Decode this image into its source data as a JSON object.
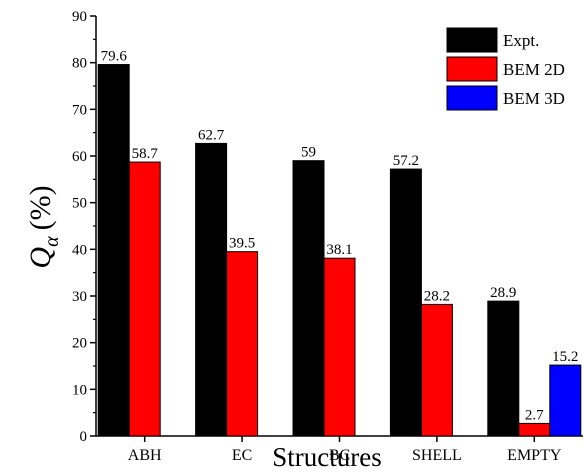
{
  "chart_data": {
    "type": "bar",
    "title": "",
    "xlabel": "Structures",
    "ylabel": {
      "symbol": "Q",
      "subscript": "α",
      "unit": "(%)"
    },
    "ylim": [
      0,
      90
    ],
    "yticks": [
      0,
      10,
      20,
      30,
      40,
      50,
      60,
      70,
      80,
      90
    ],
    "categories": [
      "ABH",
      "EC",
      "BC",
      "SHELL",
      "EMPTY"
    ],
    "series": [
      {
        "name": "Expt.",
        "color": "#000000",
        "values": [
          79.6,
          62.7,
          59,
          57.2,
          28.9
        ],
        "labels": [
          "79.6",
          "62.7",
          "59",
          "57.2",
          "28.9"
        ]
      },
      {
        "name": "BEM 2D",
        "color": "#ff0000",
        "values": [
          58.7,
          39.5,
          38.1,
          28.2,
          2.7
        ],
        "labels": [
          "58.7",
          "39.5",
          "38.1",
          "28.2",
          "2.7"
        ]
      },
      {
        "name": "BEM 3D",
        "color": "#0000ff",
        "values": [
          null,
          null,
          null,
          null,
          15.2
        ],
        "labels": [
          null,
          null,
          null,
          null,
          "15.2"
        ]
      }
    ],
    "grid": false,
    "legend": "top-right"
  }
}
